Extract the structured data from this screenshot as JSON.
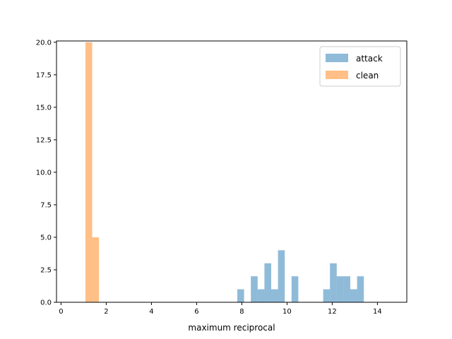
{
  "chart_data": {
    "type": "bar",
    "xlabel": "maximum reciprocal",
    "ylabel": "",
    "xlim": [
      -0.2,
      15.3
    ],
    "ylim": [
      0,
      20.1
    ],
    "xticks": [
      0,
      2,
      4,
      6,
      8,
      10,
      12,
      14
    ],
    "yticks": [
      0.0,
      2.5,
      5.0,
      7.5,
      10.0,
      12.5,
      15.0,
      17.5,
      20.0
    ],
    "xtick_labels": [
      "0",
      "2",
      "4",
      "6",
      "8",
      "10",
      "12",
      "14"
    ],
    "ytick_labels": [
      "0.0",
      "2.5",
      "5.0",
      "7.5",
      "10.0",
      "12.5",
      "15.0",
      "17.5",
      "20.0"
    ],
    "legend_position": "top-right",
    "series": [
      {
        "name": "attack",
        "color": "#1f77b4",
        "opacity": 0.5,
        "bin_width": 0.3,
        "bins": [
          {
            "x": 7.8,
            "count": 1
          },
          {
            "x": 8.4,
            "count": 2
          },
          {
            "x": 8.7,
            "count": 1
          },
          {
            "x": 9.0,
            "count": 3
          },
          {
            "x": 9.3,
            "count": 1
          },
          {
            "x": 9.6,
            "count": 4
          },
          {
            "x": 10.2,
            "count": 2
          },
          {
            "x": 11.6,
            "count": 1
          },
          {
            "x": 11.9,
            "count": 3
          },
          {
            "x": 12.2,
            "count": 2
          },
          {
            "x": 12.5,
            "count": 2
          },
          {
            "x": 12.8,
            "count": 1
          },
          {
            "x": 13.1,
            "count": 2
          }
        ]
      },
      {
        "name": "clean",
        "color": "#ff7f0e",
        "opacity": 0.5,
        "bin_width": 0.3,
        "bins": [
          {
            "x": 1.08,
            "count": 20
          },
          {
            "x": 1.38,
            "count": 5
          }
        ]
      }
    ]
  }
}
